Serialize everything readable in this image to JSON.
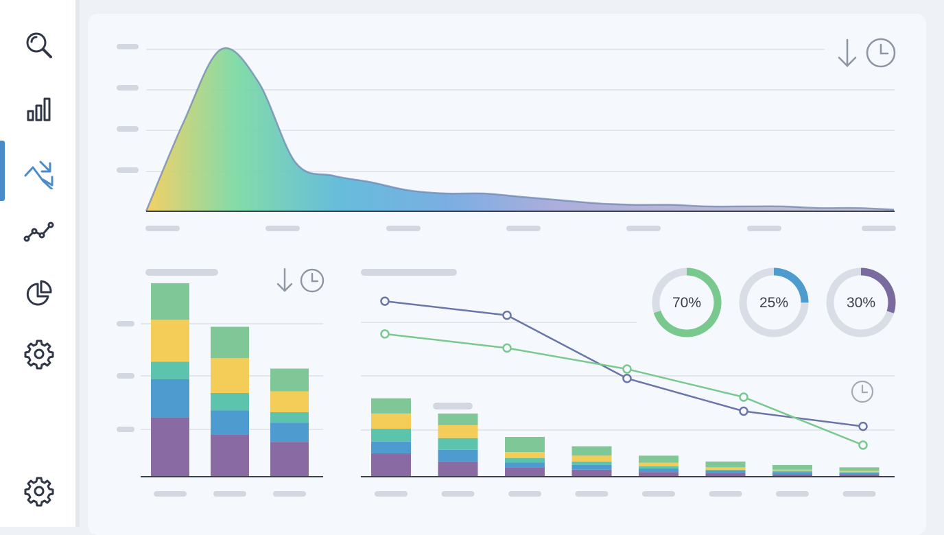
{
  "sidebar": {
    "items": [
      {
        "icon": "search-icon",
        "active": false
      },
      {
        "icon": "bar-chart-icon",
        "active": false
      },
      {
        "icon": "trend-down-icon",
        "active": true
      },
      {
        "icon": "line-chart-icon",
        "active": false
      },
      {
        "icon": "pie-chart-icon",
        "active": false
      },
      {
        "icon": "gear-icon",
        "active": false
      }
    ],
    "footer_icon": "gear-icon"
  },
  "colors": {
    "accent": "#4a8cca",
    "purple": "#8a6aa2",
    "blue": "#4e9bd0",
    "teal": "#5cc4ad",
    "yellow": "#f3cd58",
    "green": "#7fc796",
    "navy_line": "#6a75a8",
    "green_line": "#79c98f"
  },
  "chart_data": [
    {
      "type": "area",
      "description_free": true,
      "x": [
        0,
        5,
        10,
        15,
        20,
        25,
        30,
        35,
        40,
        45,
        50,
        55,
        60,
        65,
        70,
        75,
        80,
        85,
        90,
        95,
        100
      ],
      "values": [
        0,
        55,
        100,
        80,
        30,
        22,
        18,
        13,
        11,
        11,
        9,
        7,
        5,
        4,
        4,
        3,
        3,
        3,
        2,
        2,
        1
      ],
      "ylim": [
        0,
        100
      ],
      "grid": true,
      "gradient": [
        "#f3cd58",
        "#79d9a2",
        "#5aa9e0",
        "#a4a6d8",
        "#b8b2c8"
      ]
    },
    {
      "type": "bar",
      "stacked": true,
      "categories": [
        "",
        "",
        ""
      ],
      "series": [
        {
          "values": [
            34,
            24,
            20
          ]
        },
        {
          "values": [
            22,
            14,
            11
          ]
        },
        {
          "values": [
            10,
            10,
            6
          ]
        },
        {
          "values": [
            24,
            20,
            12
          ]
        },
        {
          "values": [
            21,
            18,
            13
          ]
        }
      ],
      "ylim": [
        0,
        120
      ],
      "grid": true
    },
    {
      "type": "bar",
      "stacked": true,
      "categories": [
        "",
        "",
        "",
        "",
        "",
        "",
        "",
        ""
      ],
      "series": [
        {
          "values": [
            20,
            13,
            8,
            6,
            4,
            3,
            2,
            2
          ]
        },
        {
          "values": [
            10,
            10,
            4,
            4,
            3,
            2,
            2,
            1
          ]
        },
        {
          "values": [
            11,
            10,
            4,
            3,
            2,
            1,
            1,
            1
          ]
        },
        {
          "values": [
            13,
            11,
            5,
            5,
            3,
            2,
            1,
            1
          ]
        },
        {
          "values": [
            13,
            10,
            13,
            8,
            6,
            5,
            4,
            3
          ]
        }
      ],
      "ylim": [
        0,
        170
      ],
      "grid": true
    },
    {
      "type": "line",
      "x": [
        1,
        2,
        3,
        4,
        5
      ],
      "series": [
        {
          "values": [
            150,
            138,
            84,
            56,
            43
          ]
        },
        {
          "values": [
            122,
            110,
            92,
            68,
            27
          ]
        }
      ],
      "ylim": [
        0,
        170
      ]
    },
    {
      "type": "pie",
      "donuts": [
        {
          "label": "70%",
          "value": 70,
          "color": "#79c98f"
        },
        {
          "label": "25%",
          "value": 25,
          "color": "#4e9bd0"
        },
        {
          "label": "30%",
          "value": 30,
          "color": "#7a6a9e"
        }
      ]
    }
  ]
}
